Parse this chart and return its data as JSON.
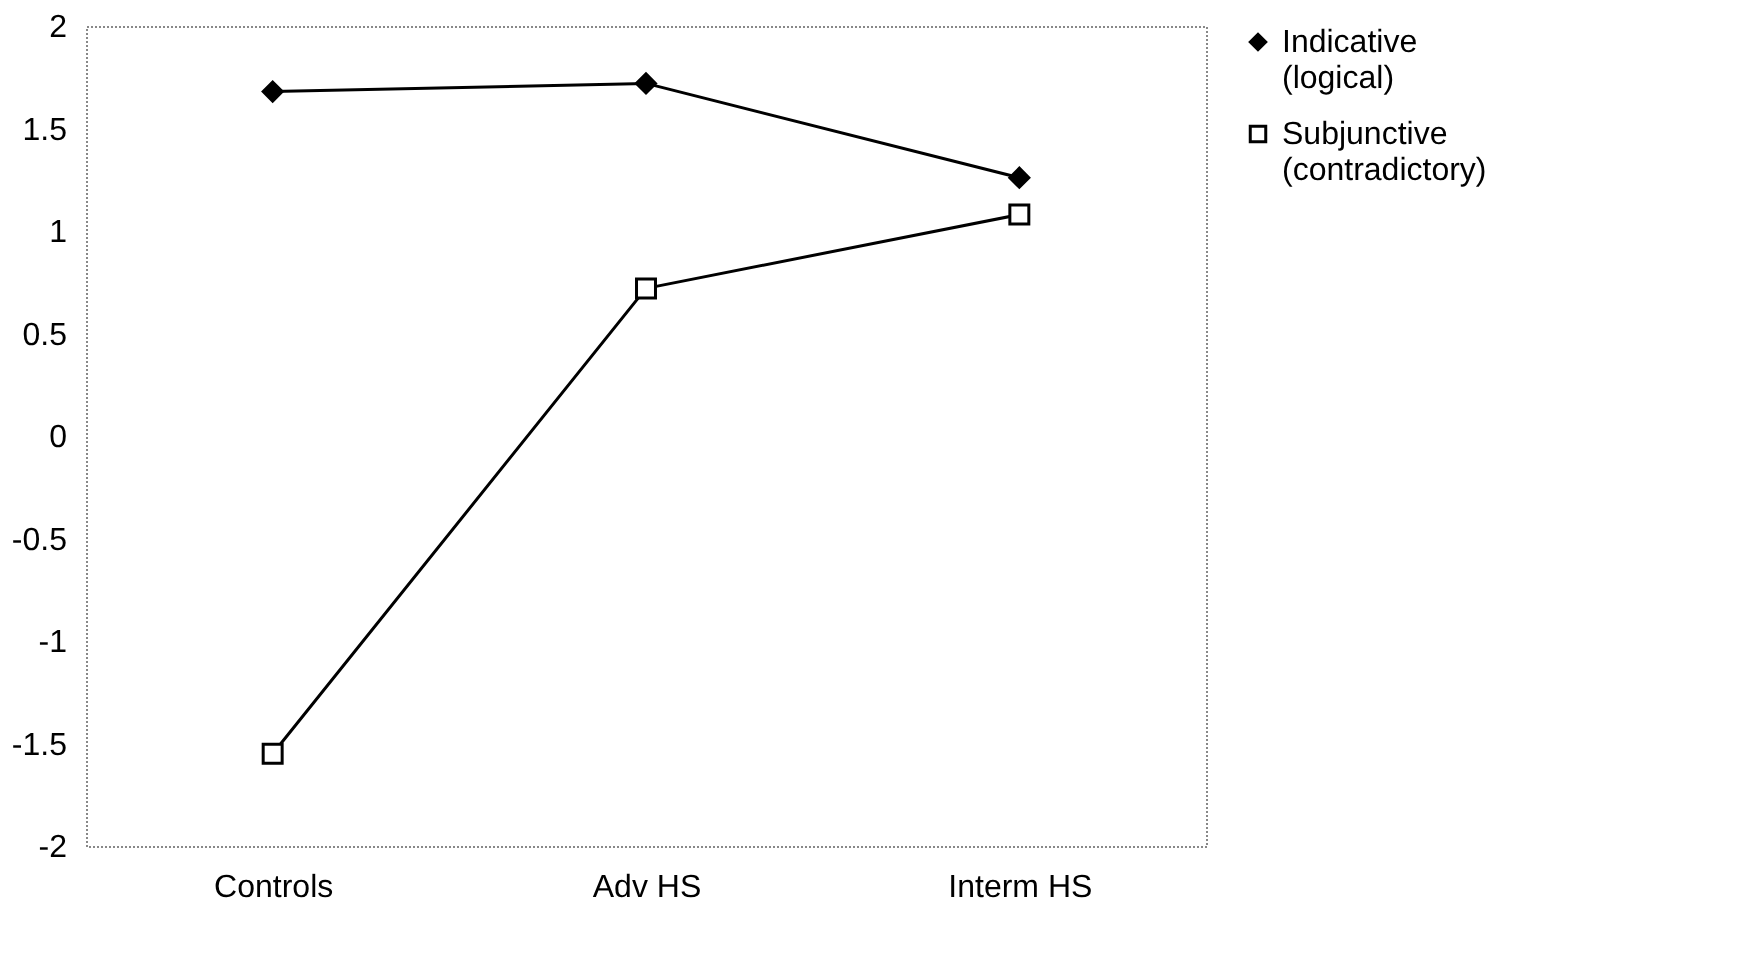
{
  "chart_data": {
    "type": "line",
    "categories": [
      "Controls",
      "Adv HS",
      "Interm HS"
    ],
    "series": [
      {
        "name": "Indicative\n(logical)",
        "color": "#000000",
        "marker": "diamond",
        "values": [
          1.68,
          1.72,
          1.26
        ]
      },
      {
        "name": "Subjunctive\n(contradictory)",
        "color": "#000000",
        "marker": "square",
        "values": [
          -1.55,
          0.72,
          1.08
        ]
      }
    ],
    "ylim": [
      -2,
      2
    ],
    "yticks": [
      -2,
      -1.5,
      -1,
      -0.5,
      0,
      0.5,
      1,
      1.5,
      2
    ],
    "grid": false,
    "legend": "right",
    "line_style": "solid"
  }
}
